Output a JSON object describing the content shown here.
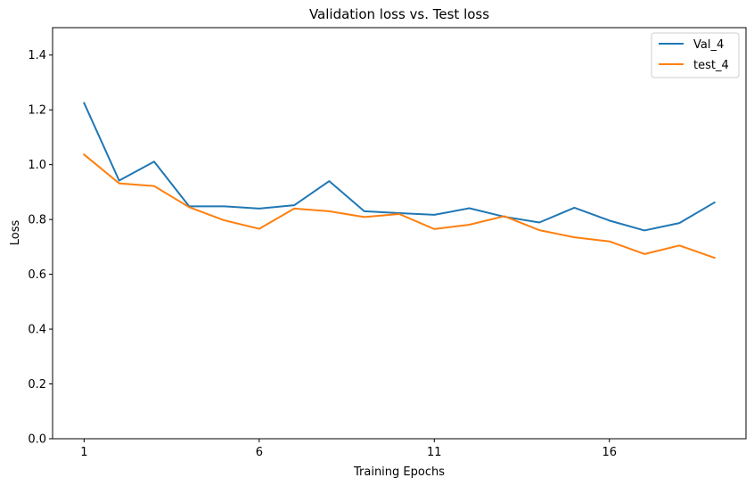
{
  "chart_data": {
    "type": "line",
    "title": "Validation loss vs. Test loss",
    "xlabel": "Training Epochs",
    "ylabel": "Loss",
    "xlim": [
      0.1,
      19.9
    ],
    "ylim": [
      0,
      1.5
    ],
    "xticks": [
      1,
      6,
      11,
      16
    ],
    "yticks": [
      0.0,
      0.2,
      0.4,
      0.6,
      0.8,
      1.0,
      1.2,
      1.4
    ],
    "ytick_labels": [
      "0.0",
      "0.2",
      "0.4",
      "0.6",
      "0.8",
      "1.0",
      "1.2",
      "1.4"
    ],
    "grid": false,
    "legend_position": "top-right",
    "x": [
      1,
      2,
      3,
      4,
      5,
      6,
      7,
      8,
      9,
      10,
      11,
      12,
      13,
      14,
      15,
      16,
      17,
      18,
      19
    ],
    "series": [
      {
        "name": "Val_4",
        "color": "#1f77b4",
        "values": [
          1.225,
          0.942,
          1.011,
          0.848,
          0.848,
          0.84,
          0.852,
          0.94,
          0.83,
          0.823,
          0.817,
          0.841,
          0.81,
          0.789,
          0.843,
          0.796,
          0.76,
          0.787,
          0.862
        ]
      },
      {
        "name": "test_4",
        "color": "#ff7f0e",
        "values": [
          1.037,
          0.932,
          0.922,
          0.845,
          0.797,
          0.766,
          0.84,
          0.83,
          0.809,
          0.82,
          0.765,
          0.781,
          0.812,
          0.761,
          0.735,
          0.72,
          0.674,
          0.705,
          0.66
        ]
      }
    ]
  }
}
